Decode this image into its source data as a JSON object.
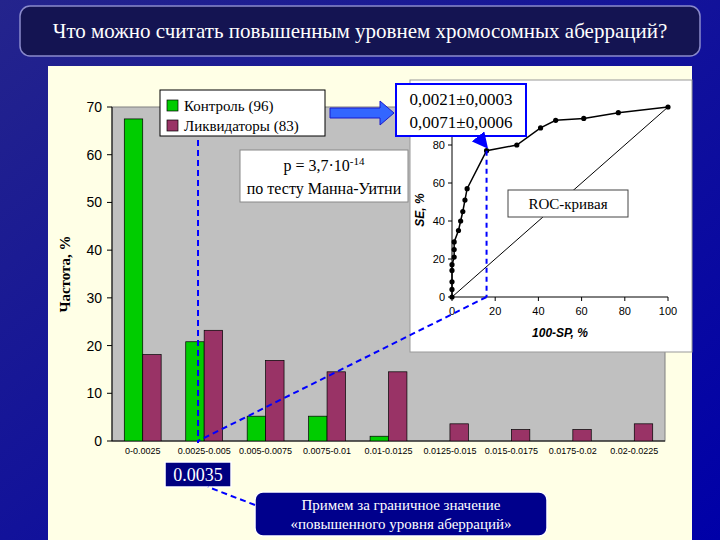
{
  "chart_data": [
    {
      "type": "bar",
      "title": "Что можно считать повышенным уровнем хромосомных аберраций?",
      "categories": [
        "0-0.0025",
        "0.0025-0.005",
        "0.005-0.0075",
        "0.0075-0.01",
        "0.01-0.0125",
        "0.0125-0.015",
        "0.015-0.0175",
        "0.0175-0.02",
        "0.02-0.0225"
      ],
      "bins": [
        0,
        0.0025,
        0.005,
        0.0075,
        0.01,
        0.0125,
        0.015,
        0.0175,
        0.02,
        0.0225
      ],
      "series": [
        {
          "name": "Контроль (96)",
          "color": "#00cc00",
          "values": [
            67.5,
            20.8,
            5.2,
            5.2,
            1.0,
            0,
            0,
            0,
            0
          ]
        },
        {
          "name": "Ликвидаторы (83)",
          "color": "#993366",
          "values": [
            18.1,
            23.2,
            16.9,
            14.5,
            14.5,
            3.6,
            2.4,
            2.4,
            3.6
          ]
        }
      ],
      "y_label": "Частота, %",
      "ylim": [
        0,
        70
      ],
      "yticks": [
        0,
        10,
        20,
        30,
        40,
        50,
        60,
        70
      ],
      "grid": false,
      "legend": "top-left",
      "threshold": {
        "value": 0.0035,
        "label": "0.0035"
      },
      "annotations": {
        "means": [
          "0,0021±0,0003",
          "0,0071±0,0006"
        ],
        "p_value": {
          "text": "p = 3,7·10",
          "exponent": "-14"
        },
        "test": "по тесту Манна-Уитни",
        "threshold_note": [
          "Примем за граничное значение",
          "«повышенного уровня аберраций»"
        ]
      }
    },
    {
      "type": "line",
      "title": "ROC-кривая",
      "x": [
        0,
        0,
        0,
        0,
        0,
        1,
        1,
        1,
        3,
        4,
        5,
        6,
        7,
        16,
        30,
        41,
        48,
        61,
        77,
        100
      ],
      "values": [
        0,
        4,
        8,
        14,
        17,
        21,
        25,
        29,
        35,
        40,
        45,
        51,
        57,
        77,
        80,
        89,
        93,
        94,
        97,
        100
      ],
      "color": "#000000",
      "marker": "circle",
      "x_label": "100-SP, %",
      "y_label": "SE, %",
      "xlim": [
        0,
        100
      ],
      "ylim": [
        0,
        100
      ],
      "xticks": [
        0,
        20,
        40,
        60,
        80,
        100
      ],
      "yticks": [
        0,
        20,
        40,
        60,
        80
      ],
      "threshold_point": {
        "x": 16,
        "y": 77
      }
    }
  ]
}
